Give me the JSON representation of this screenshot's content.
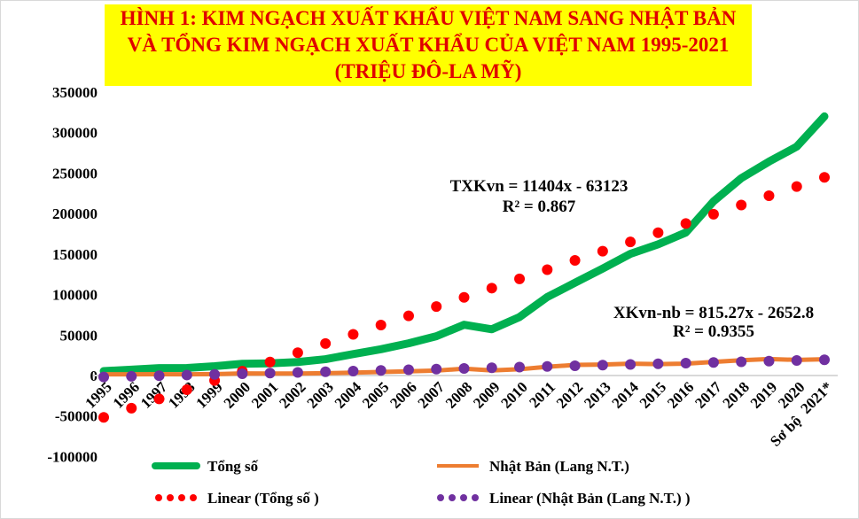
{
  "chart_data": {
    "type": "line",
    "title": "HÌNH 1: KIM NGẠCH XUẤT KHẨU  VIỆT NAM SANG NHẬT BẢN VÀ TỔNG KIM NGẠCH  XUẤT KHẨU CỦA VIỆT NAM 1995-2021 (TRIỆU ĐÔ-LA MỸ)",
    "categories": [
      "1995",
      "1996",
      "1997",
      "1998",
      "1999",
      "2000",
      "2001",
      "2002",
      "2003",
      "2004",
      "2005",
      "2006",
      "2007",
      "2008",
      "2009",
      "2010",
      "2011",
      "2012",
      "2013",
      "2014",
      "2015",
      "2016",
      "2017",
      "2018",
      "2019",
      "2020",
      "2021*"
    ],
    "extra_label": "Sơ bộ",
    "ylim": [
      -100000,
      350000
    ],
    "yticks": [
      -100000,
      -50000,
      0,
      50000,
      100000,
      150000,
      200000,
      250000,
      300000,
      350000
    ],
    "series": [
      {
        "name": "Tổng số",
        "color": "#00b050",
        "values": [
          5449,
          7256,
          9185,
          9361,
          11541,
          14483,
          15029,
          16706,
          20149,
          26485,
          32447,
          39826,
          48561,
          62685,
          57096,
          72237,
          96906,
          114529,
          132033,
          150217,
          162017,
          176581,
          215119,
          243697,
          264189,
          282629,
          320000
        ]
      },
      {
        "name": "Nhật Bản (Lang N.T.)",
        "color": "#ed7d31",
        "values": [
          1461,
          1546,
          1675,
          1515,
          1786,
          2575,
          2510,
          2438,
          2909,
          3542,
          4340,
          5232,
          6090,
          8468,
          6292,
          7728,
          10781,
          13065,
          13544,
          14675,
          14100,
          14671,
          16841,
          18851,
          20413,
          19284,
          20130
        ]
      }
    ],
    "trendlines": [
      {
        "name": "Linear (Tổng số )",
        "color": "#ff0000",
        "slope": 11404,
        "intercept": -63123,
        "equation": "TXKvn = 11404x - 63123",
        "r2": "R² = 0.867"
      },
      {
        "name": "Linear (Nhật Bản (Lang N.T.) )",
        "color": "#7030a0",
        "slope": 815.27,
        "intercept": -2652.8,
        "equation": "XKvn-nb  = 815.27x - 2652.8",
        "r2": "R² = 0.9355"
      }
    ],
    "legend": "bottom"
  }
}
